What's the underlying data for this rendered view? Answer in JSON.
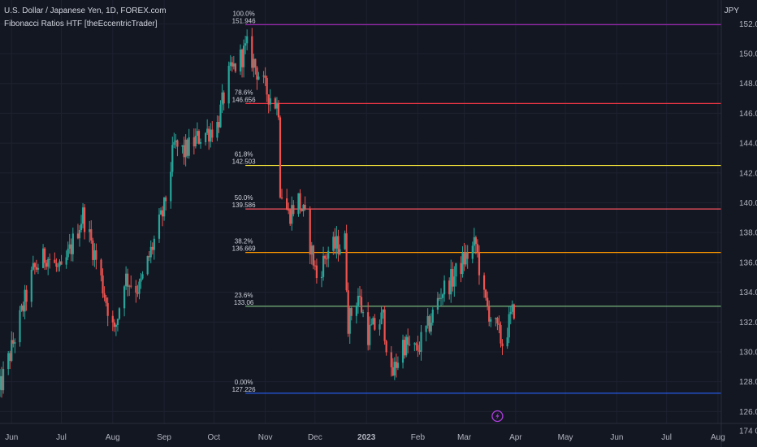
{
  "header": {
    "title": "U.S. Dollar / Japanese Yen, 1D, FOREX.com",
    "indicator": "Fibonacci Ratios HTF [theEccentricTrader]",
    "currency": "JPY"
  },
  "colors": {
    "background": "#131722",
    "grid": "#1e2230",
    "bull": "#26a69a",
    "bear": "#ef5350",
    "axis_text": "#b2b5be",
    "marker": "#b13fe0"
  },
  "icons": {
    "event_marker": "lightning-icon"
  },
  "chart_data": {
    "type": "candlestick",
    "title": "U.S. Dollar / Japanese Yen, 1D, FOREX.com",
    "ylabel": "JPY",
    "ylim": [
      125.2,
      153.6
    ],
    "xlim": [
      "2022-05-25",
      "2023-08-03"
    ],
    "grid": true,
    "x_tick_labels": [
      "Jun",
      "Jul",
      "Aug",
      "Sep",
      "Oct",
      "Nov",
      "Dec",
      "2023",
      "Feb",
      "Mar",
      "Apr",
      "May",
      "Jun",
      "Jul",
      "Aug"
    ],
    "x_tick_dates": [
      "2022-06-01",
      "2022-07-01",
      "2022-08-01",
      "2022-09-01",
      "2022-10-01",
      "2022-11-01",
      "2022-12-01",
      "2023-01-01",
      "2023-02-01",
      "2023-03-01",
      "2023-04-01",
      "2023-05-01",
      "2023-06-01",
      "2023-07-01",
      "2023-08-01"
    ],
    "y_ticks": [
      126,
      128,
      130,
      132,
      134,
      136,
      138,
      140,
      142,
      144,
      146,
      148,
      150,
      152
    ],
    "y_tick_labels": [
      "126.000",
      "128.000",
      "130.000",
      "132.000",
      "134.000",
      "136.000",
      "138.000",
      "140.000",
      "142.000",
      "144.000",
      "146.000",
      "148.000",
      "150.000",
      "152.000"
    ],
    "bottom_right_label": "174 000",
    "price_path": {
      "dates": [
        "2022-05-24",
        "2022-06-01",
        "2022-06-14",
        "2022-06-22",
        "2022-07-01",
        "2022-07-14",
        "2022-07-22",
        "2022-08-02",
        "2022-08-08",
        "2022-08-17",
        "2022-09-01",
        "2022-09-07",
        "2022-09-13",
        "2022-09-22",
        "2022-10-03",
        "2022-10-10",
        "2022-10-21",
        "2022-11-01",
        "2022-11-09",
        "2022-11-10",
        "2022-11-15",
        "2022-11-21",
        "2022-11-25",
        "2022-12-02",
        "2022-12-09",
        "2022-12-19",
        "2022-12-21",
        "2022-12-27",
        "2023-01-02",
        "2023-01-11",
        "2023-01-16",
        "2023-01-23",
        "2023-01-31",
        "2023-02-07",
        "2023-02-15",
        "2023-02-22",
        "2023-03-01",
        "2023-03-08",
        "2023-03-13",
        "2023-03-20",
        "2023-03-24",
        "2023-03-31"
      ],
      "closes": [
        127.2,
        130.2,
        135.4,
        136.5,
        135.2,
        139.2,
        136.2,
        131.2,
        135.0,
        134.2,
        139.6,
        143.8,
        143.4,
        144.4,
        145.2,
        148.5,
        150.4,
        147.6,
        146.4,
        141.0,
        139.2,
        140.2,
        138.9,
        135.0,
        136.8,
        137.4,
        132.0,
        133.8,
        131.2,
        132.3,
        128.2,
        130.6,
        130.0,
        131.6,
        134.0,
        134.9,
        136.2,
        137.2,
        133.5,
        131.6,
        130.6,
        132.9
      ]
    },
    "series": [
      {
        "name": "100.0%",
        "value": 151.946,
        "label": "151.946",
        "color": "#9c27b0"
      },
      {
        "name": "78.6%",
        "value": 146.656,
        "label": "146.656",
        "color": "#f23645"
      },
      {
        "name": "61.8%",
        "value": 142.503,
        "label": "142.503",
        "color": "#ffeb3b"
      },
      {
        "name": "50.0%",
        "value": 139.586,
        "label": "139.586",
        "color": "#f7525f"
      },
      {
        "name": "38.2%",
        "value": 136.669,
        "label": "136.669",
        "color": "#ff9800"
      },
      {
        "name": "23.6%",
        "value": 133.06,
        "label": "133.06",
        "color": "#81c784"
      },
      {
        "name": "0.00%",
        "value": 127.226,
        "label": "127.226",
        "color": "#2962ff"
      }
    ]
  }
}
